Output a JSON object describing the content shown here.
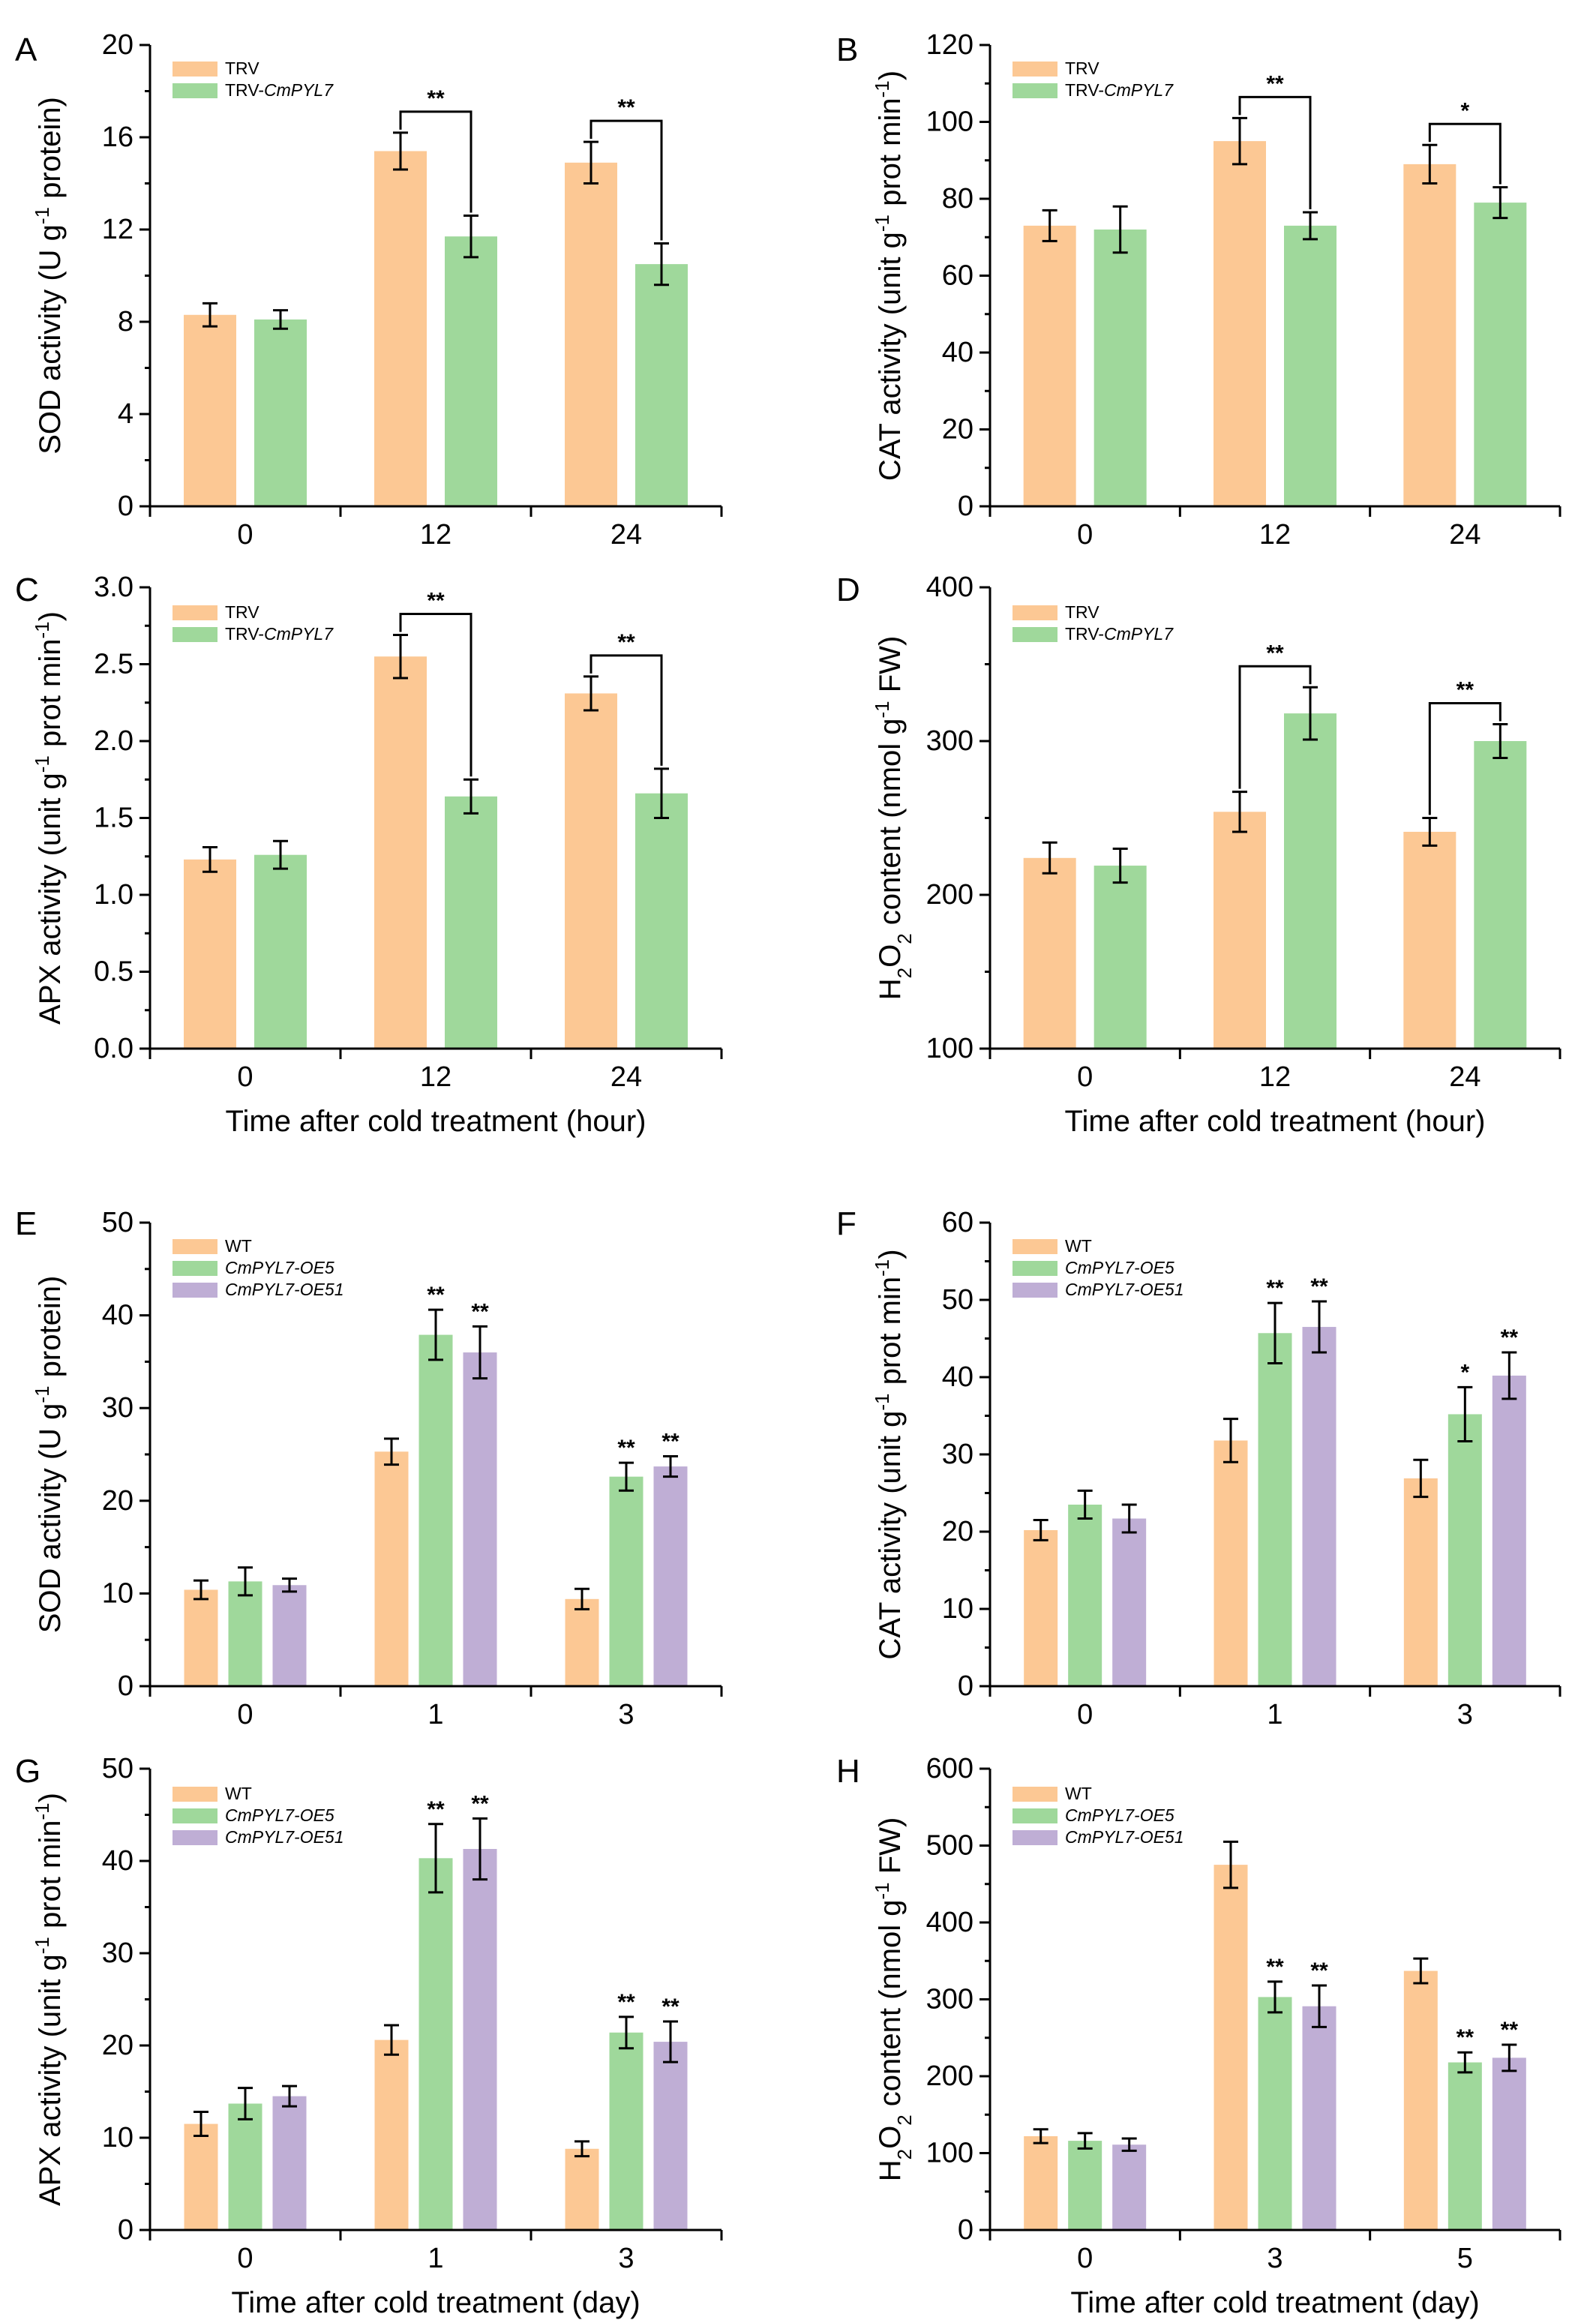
{
  "figure": {
    "colors": {
      "wt": "#fcc894",
      "oe5": "#9fd89b",
      "oe51": "#bfaed5",
      "axis": "#000000"
    }
  },
  "chart_data": [
    {
      "id": "A",
      "type": "bar",
      "letter": "A",
      "xlabel": "",
      "xticks": [
        "0",
        "12",
        "24"
      ],
      "ylabel_parts": [
        "SOD activity (U g",
        "-1",
        " protein)"
      ],
      "yticks": [
        "0",
        "4",
        "8",
        "12",
        "16",
        "20"
      ],
      "ylim": [
        0,
        20
      ],
      "legend": [
        {
          "name": "TRV",
          "italic": ""
        },
        {
          "name": "TRV-",
          "italic": "CmPYL7"
        }
      ],
      "series": [
        {
          "name": "TRV",
          "values": [
            8.3,
            15.4,
            14.9
          ],
          "errors": [
            0.5,
            0.8,
            0.9
          ]
        },
        {
          "name": "TRV-CmPYL7",
          "values": [
            8.1,
            11.7,
            10.5
          ],
          "errors": [
            0.4,
            0.9,
            0.9
          ]
        }
      ],
      "brackets": [
        {
          "group": 1,
          "label": "**"
        },
        {
          "group": 2,
          "label": "**"
        }
      ],
      "stars": []
    },
    {
      "id": "B",
      "type": "bar",
      "letter": "B",
      "xlabel": "",
      "xticks": [
        "0",
        "12",
        "24"
      ],
      "ylabel_parts": [
        "CAT activity (unit g",
        "-1",
        " prot min",
        "-1",
        ")"
      ],
      "yticks": [
        "0",
        "20",
        "40",
        "60",
        "80",
        "100",
        "120"
      ],
      "ylim": [
        0,
        120
      ],
      "legend": [
        {
          "name": "TRV",
          "italic": ""
        },
        {
          "name": "TRV-",
          "italic": "CmPYL7"
        }
      ],
      "series": [
        {
          "name": "TRV",
          "values": [
            73,
            95,
            89
          ],
          "errors": [
            4,
            6,
            5
          ]
        },
        {
          "name": "TRV-CmPYL7",
          "values": [
            72,
            73,
            79
          ],
          "errors": [
            6,
            3.5,
            4
          ]
        }
      ],
      "brackets": [
        {
          "group": 1,
          "label": "**"
        },
        {
          "group": 2,
          "label": "*"
        }
      ],
      "stars": []
    },
    {
      "id": "C",
      "type": "bar",
      "letter": "C",
      "xlabel": "Time after cold treatment (hour)",
      "xticks": [
        "0",
        "12",
        "24"
      ],
      "ylabel_parts": [
        "APX activity (unit g",
        "-1",
        " prot min",
        "-1",
        ")"
      ],
      "yticks": [
        "0.0",
        "0.5",
        "1.0",
        "1.5",
        "2.0",
        "2.5",
        "3.0"
      ],
      "ylim": [
        0,
        3
      ],
      "legend": [
        {
          "name": "TRV",
          "italic": ""
        },
        {
          "name": "TRV-",
          "italic": "CmPYL7"
        }
      ],
      "series": [
        {
          "name": "TRV",
          "values": [
            1.23,
            2.55,
            2.31
          ],
          "errors": [
            0.08,
            0.14,
            0.11
          ]
        },
        {
          "name": "TRV-CmPYL7",
          "values": [
            1.26,
            1.64,
            1.66
          ],
          "errors": [
            0.09,
            0.11,
            0.16
          ]
        }
      ],
      "brackets": [
        {
          "group": 1,
          "label": "**"
        },
        {
          "group": 2,
          "label": "**"
        }
      ],
      "stars": []
    },
    {
      "id": "D",
      "type": "bar",
      "letter": "D",
      "xlabel": "Time after cold treatment (hour)",
      "xticks": [
        "0",
        "12",
        "24"
      ],
      "ylabel_parts": [
        "H",
        "2",
        "O",
        "2",
        " content (nmol g",
        "-1",
        " FW)"
      ],
      "yticks": [
        "100",
        "200",
        "300",
        "400"
      ],
      "ylim": [
        100,
        400
      ],
      "legend": [
        {
          "name": "TRV",
          "italic": ""
        },
        {
          "name": "TRV-",
          "italic": "CmPYL7"
        }
      ],
      "series": [
        {
          "name": "TRV",
          "values": [
            224,
            254,
            241
          ],
          "errors": [
            10,
            13,
            9
          ]
        },
        {
          "name": "TRV-CmPYL7",
          "values": [
            219,
            318,
            300
          ],
          "errors": [
            11,
            17,
            11
          ]
        }
      ],
      "brackets": [
        {
          "group": 1,
          "label": "**"
        },
        {
          "group": 2,
          "label": "**"
        }
      ],
      "stars": []
    },
    {
      "id": "E",
      "type": "bar",
      "letter": "E",
      "xlabel": "",
      "xticks": [
        "0",
        "1",
        "3"
      ],
      "ylabel_parts": [
        "SOD activity (U g",
        "-1",
        " protein)"
      ],
      "yticks": [
        "0",
        "10",
        "20",
        "30",
        "40",
        "50"
      ],
      "ylim": [
        0,
        50
      ],
      "legend": [
        {
          "name": "WT",
          "italic": ""
        },
        {
          "name": "",
          "italic": "CmPYL7-OE5"
        },
        {
          "name": "",
          "italic": "CmPYL7-OE51"
        }
      ],
      "series": [
        {
          "name": "WT",
          "values": [
            10.4,
            25.3,
            9.4
          ],
          "errors": [
            1.0,
            1.4,
            1.1
          ]
        },
        {
          "name": "CmPYL7-OE5",
          "values": [
            11.3,
            37.9,
            22.6
          ],
          "errors": [
            1.5,
            2.7,
            1.5
          ]
        },
        {
          "name": "CmPYL7-OE51",
          "values": [
            10.9,
            36.0,
            23.7
          ],
          "errors": [
            0.7,
            2.8,
            1.1
          ]
        }
      ],
      "brackets": [],
      "stars": [
        {
          "group": 1,
          "series": 1,
          "label": "**"
        },
        {
          "group": 1,
          "series": 2,
          "label": "**"
        },
        {
          "group": 2,
          "series": 1,
          "label": "**"
        },
        {
          "group": 2,
          "series": 2,
          "label": "**"
        }
      ]
    },
    {
      "id": "F",
      "type": "bar",
      "letter": "F",
      "xlabel": "",
      "xticks": [
        "0",
        "1",
        "3"
      ],
      "ylabel_parts": [
        "CAT activity (unit g",
        "-1",
        " prot min",
        "-1",
        ")"
      ],
      "yticks": [
        "0",
        "10",
        "20",
        "30",
        "40",
        "50",
        "60"
      ],
      "ylim": [
        0,
        60
      ],
      "legend": [
        {
          "name": "WT",
          "italic": ""
        },
        {
          "name": "",
          "italic": "CmPYL7-OE5"
        },
        {
          "name": "",
          "italic": "CmPYL7-OE51"
        }
      ],
      "series": [
        {
          "name": "WT",
          "values": [
            20.2,
            31.8,
            26.9
          ],
          "errors": [
            1.3,
            2.8,
            2.4
          ]
        },
        {
          "name": "CmPYL7-OE5",
          "values": [
            23.5,
            45.7,
            35.2
          ],
          "errors": [
            1.8,
            3.9,
            3.5
          ]
        },
        {
          "name": "CmPYL7-OE51",
          "values": [
            21.7,
            46.5,
            40.2
          ],
          "errors": [
            1.8,
            3.3,
            3.0
          ]
        }
      ],
      "brackets": [],
      "stars": [
        {
          "group": 1,
          "series": 1,
          "label": "**"
        },
        {
          "group": 1,
          "series": 2,
          "label": "**"
        },
        {
          "group": 2,
          "series": 1,
          "label": "*"
        },
        {
          "group": 2,
          "series": 2,
          "label": "**"
        }
      ]
    },
    {
      "id": "G",
      "type": "bar",
      "letter": "G",
      "xlabel": "Time after cold treatment (day)",
      "xticks": [
        "0",
        "1",
        "3"
      ],
      "ylabel_parts": [
        "APX activity (unit g",
        "-1",
        " prot min",
        "-1",
        ")"
      ],
      "yticks": [
        "0",
        "10",
        "20",
        "30",
        "40",
        "50"
      ],
      "ylim": [
        0,
        50
      ],
      "legend": [
        {
          "name": "WT",
          "italic": ""
        },
        {
          "name": "",
          "italic": "CmPYL7-OE5"
        },
        {
          "name": "",
          "italic": "CmPYL7-OE51"
        }
      ],
      "series": [
        {
          "name": "WT",
          "values": [
            11.5,
            20.6,
            8.8
          ],
          "errors": [
            1.3,
            1.6,
            0.8
          ]
        },
        {
          "name": "CmPYL7-OE5",
          "values": [
            13.7,
            40.3,
            21.4
          ],
          "errors": [
            1.7,
            3.7,
            1.7
          ]
        },
        {
          "name": "CmPYL7-OE51",
          "values": [
            14.5,
            41.3,
            20.4
          ],
          "errors": [
            1.1,
            3.3,
            2.2
          ]
        }
      ],
      "brackets": [],
      "stars": [
        {
          "group": 1,
          "series": 1,
          "label": "**"
        },
        {
          "group": 1,
          "series": 2,
          "label": "**"
        },
        {
          "group": 2,
          "series": 1,
          "label": "**"
        },
        {
          "group": 2,
          "series": 2,
          "label": "**"
        }
      ]
    },
    {
      "id": "H",
      "type": "bar",
      "letter": "H",
      "xlabel": "Time after cold treatment (day)",
      "xticks": [
        "0",
        "3",
        "5"
      ],
      "ylabel_parts": [
        "H",
        "2",
        "O",
        "2",
        " content (nmol g",
        "-1",
        " FW)"
      ],
      "yticks": [
        "0",
        "100",
        "200",
        "300",
        "400",
        "500",
        "600"
      ],
      "ylim": [
        0,
        600
      ],
      "legend": [
        {
          "name": "WT",
          "italic": ""
        },
        {
          "name": "",
          "italic": "CmPYL7-OE5"
        },
        {
          "name": "",
          "italic": "CmPYL7-OE51"
        }
      ],
      "series": [
        {
          "name": "WT",
          "values": [
            122,
            475,
            337
          ],
          "errors": [
            9,
            30,
            16
          ]
        },
        {
          "name": "CmPYL7-OE5",
          "values": [
            116,
            303,
            218
          ],
          "errors": [
            10,
            20,
            13
          ]
        },
        {
          "name": "CmPYL7-OE51",
          "values": [
            111,
            291,
            224
          ],
          "errors": [
            8,
            27,
            17
          ]
        }
      ],
      "brackets": [],
      "stars": [
        {
          "group": 1,
          "series": 1,
          "label": "**"
        },
        {
          "group": 1,
          "series": 2,
          "label": "**"
        },
        {
          "group": 2,
          "series": 1,
          "label": "**"
        },
        {
          "group": 2,
          "series": 2,
          "label": "**"
        }
      ]
    }
  ]
}
